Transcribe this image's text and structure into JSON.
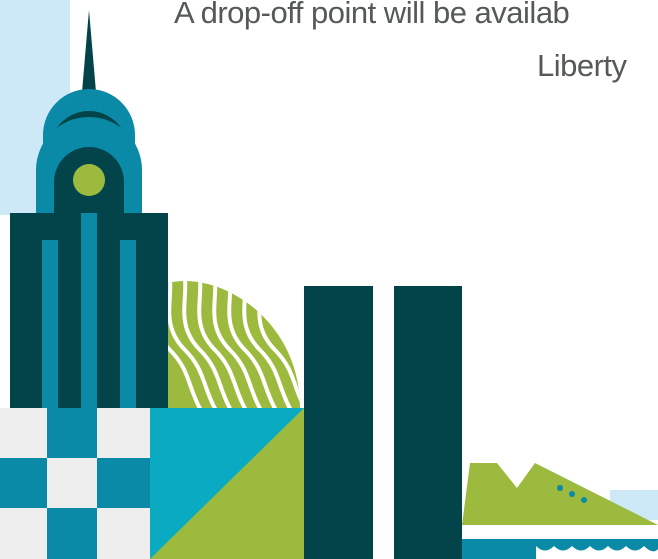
{
  "caption": {
    "line1": "A drop-off point will be availab",
    "line2": "Liberty"
  },
  "colors": {
    "dark_teal": "#03444a",
    "teal": "#0a8aa6",
    "bright_teal": "#0aaac2",
    "lime": "#9cba3d",
    "light_blue": "#cde9f8",
    "light_gray": "#eeeeee",
    "text_gray": "#55595a"
  },
  "icons": [
    "skyscraper-icon",
    "wavy-hill-icon",
    "twin-towers-icon",
    "sneaker-icon"
  ]
}
